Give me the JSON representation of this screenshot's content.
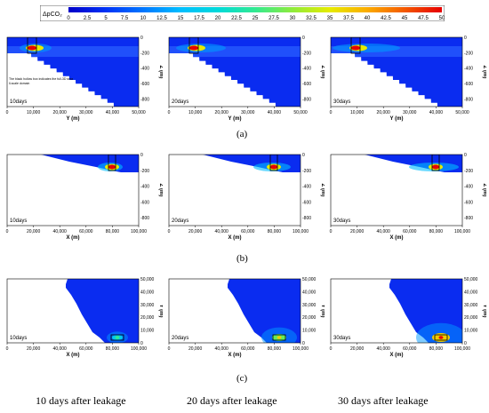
{
  "colorbar": {
    "label": "ΔpCO₂",
    "ticks": [
      "0",
      "2.5",
      "5",
      "7.5",
      "10",
      "12.5",
      "15",
      "17.5",
      "20",
      "22.5",
      "25",
      "27.5",
      "30",
      "32.5",
      "35",
      "37.5",
      "40",
      "42.5",
      "45",
      "47.5",
      "50"
    ]
  },
  "chart_data": [
    {
      "group": "(a)",
      "type": "heatmap",
      "annotation": "10days",
      "xlabel": "Y (m)",
      "ylabel": "Z (m)",
      "xticks": [
        "0",
        "10,000",
        "20,000",
        "30,000",
        "40,000",
        "50,000"
      ],
      "yticks": [
        "0",
        "-200",
        "-400",
        "-600",
        "-800"
      ],
      "xlim": [
        0,
        50000
      ],
      "ylim": [
        -900,
        0
      ],
      "note": "The black hollow box indicates the full-3D small-scale domain",
      "plume_peak_delta_pCO2": 50
    },
    {
      "group": "(a)",
      "type": "heatmap",
      "annotation": "20days",
      "xlabel": "Y (m)",
      "ylabel": "Z (m)",
      "xticks": [
        "0",
        "10,000",
        "20,000",
        "30,000",
        "40,000",
        "50,000"
      ],
      "yticks": [
        "0",
        "-200",
        "-400",
        "-600",
        "-800"
      ],
      "xlim": [
        0,
        50000
      ],
      "ylim": [
        -900,
        0
      ],
      "plume_peak_delta_pCO2": 50
    },
    {
      "group": "(a)",
      "type": "heatmap",
      "annotation": "30days",
      "xlabel": "Y (m)",
      "ylabel": "Z (m)",
      "xticks": [
        "0",
        "10,000",
        "20,000",
        "30,000",
        "40,000",
        "50,000"
      ],
      "yticks": [
        "0",
        "-200",
        "-400",
        "-600",
        "-800"
      ],
      "xlim": [
        0,
        50000
      ],
      "ylim": [
        -900,
        0
      ],
      "plume_peak_delta_pCO2": 50
    },
    {
      "group": "(b)",
      "type": "heatmap",
      "annotation": "10days",
      "xlabel": "X (m)",
      "ylabel": "Z (m)",
      "xticks": [
        "0",
        "20,000",
        "40,000",
        "60,000",
        "80,000",
        "100,000"
      ],
      "yticks": [
        "0",
        "-200",
        "-400",
        "-600",
        "-800"
      ],
      "xlim": [
        0,
        100000
      ],
      "ylim": [
        -900,
        0
      ],
      "plume_peak_delta_pCO2": 50
    },
    {
      "group": "(b)",
      "type": "heatmap",
      "annotation": "20days",
      "xlabel": "X (m)",
      "ylabel": "Z (m)",
      "xticks": [
        "0",
        "20,000",
        "40,000",
        "60,000",
        "80,000",
        "100,000"
      ],
      "yticks": [
        "0",
        "-200",
        "-400",
        "-600",
        "-800"
      ],
      "xlim": [
        0,
        100000
      ],
      "ylim": [
        -900,
        0
      ],
      "plume_peak_delta_pCO2": 50
    },
    {
      "group": "(b)",
      "type": "heatmap",
      "annotation": "30days",
      "xlabel": "X (m)",
      "ylabel": "Z (m)",
      "xticks": [
        "0",
        "20,000",
        "40,000",
        "60,000",
        "80,000",
        "100,000"
      ],
      "yticks": [
        "0",
        "-200",
        "-400",
        "-600",
        "-800"
      ],
      "xlim": [
        0,
        100000
      ],
      "ylim": [
        -900,
        0
      ],
      "plume_peak_delta_pCO2": 50
    },
    {
      "group": "(c)",
      "type": "heatmap",
      "annotation": "10days",
      "xlabel": "X (m)",
      "ylabel": "Y (m)",
      "xticks": [
        "0",
        "20,000",
        "40,000",
        "60,000",
        "80,000",
        "100,000"
      ],
      "yticks": [
        "50,000",
        "40,000",
        "30,000",
        "20,000",
        "10,000",
        "0"
      ],
      "xlim": [
        0,
        100000
      ],
      "ylim": [
        0,
        50000
      ],
      "plume_peak_delta_pCO2": 30
    },
    {
      "group": "(c)",
      "type": "heatmap",
      "annotation": "20days",
      "xlabel": "X (m)",
      "ylabel": "Y (m)",
      "xticks": [
        "0",
        "20,000",
        "40,000",
        "60,000",
        "80,000",
        "100,000"
      ],
      "yticks": [
        "50,000",
        "40,000",
        "30,000",
        "20,000",
        "10,000",
        "0"
      ],
      "xlim": [
        0,
        100000
      ],
      "ylim": [
        0,
        50000
      ],
      "plume_peak_delta_pCO2": 40
    },
    {
      "group": "(c)",
      "type": "heatmap",
      "annotation": "30days",
      "xlabel": "X (m)",
      "ylabel": "Y (m)",
      "xticks": [
        "0",
        "20,000",
        "40,000",
        "60,000",
        "80,000",
        "100,000"
      ],
      "yticks": [
        "50,000",
        "40,000",
        "30,000",
        "20,000",
        "10,000",
        "0"
      ],
      "xlim": [
        0,
        100000
      ],
      "ylim": [
        0,
        50000
      ],
      "plume_peak_delta_pCO2": 50
    }
  ],
  "panel_labels": [
    "(a)",
    "(b)",
    "(c)"
  ],
  "captions": [
    "10 days after leakage",
    "20 days after leakage",
    "30 days after leakage"
  ]
}
